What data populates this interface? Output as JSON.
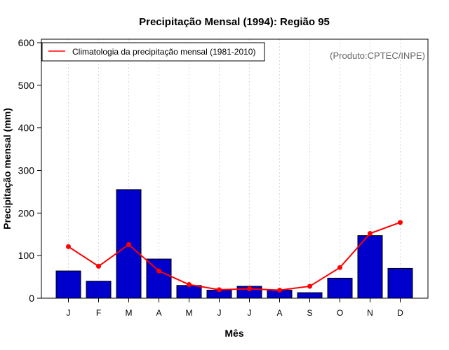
{
  "chart_data": {
    "type": "bar",
    "title": "Precipitação Mensal (1994): Região 95",
    "xlabel": "Mês",
    "ylabel": "Precipitação mensal (mm)",
    "ylim": [
      0,
      600
    ],
    "yticks": [
      0,
      100,
      200,
      300,
      400,
      500,
      600
    ],
    "categories": [
      "J",
      "F",
      "M",
      "A",
      "M",
      "J",
      "J",
      "A",
      "S",
      "O",
      "N",
      "D"
    ],
    "series": [
      {
        "name": "Precipitação mensal (1994)",
        "type": "bar",
        "color": "#0000cc",
        "values": [
          64,
          40,
          255,
          92,
          30,
          19,
          28,
          19,
          13,
          47,
          147,
          70
        ]
      },
      {
        "name": "Climatologia da precipitação mensal (1981-2010)",
        "type": "line",
        "color": "#ff0000",
        "values": [
          121,
          75,
          126,
          64,
          32,
          20,
          22,
          19,
          28,
          72,
          152,
          178
        ]
      }
    ],
    "legend": {
      "label": "Climatologia da precipitação mensal (1981-2010)",
      "placement": "top-left"
    },
    "credit": "(Produto:CPTEC/INPE)",
    "grid": "vertical-dotted"
  }
}
